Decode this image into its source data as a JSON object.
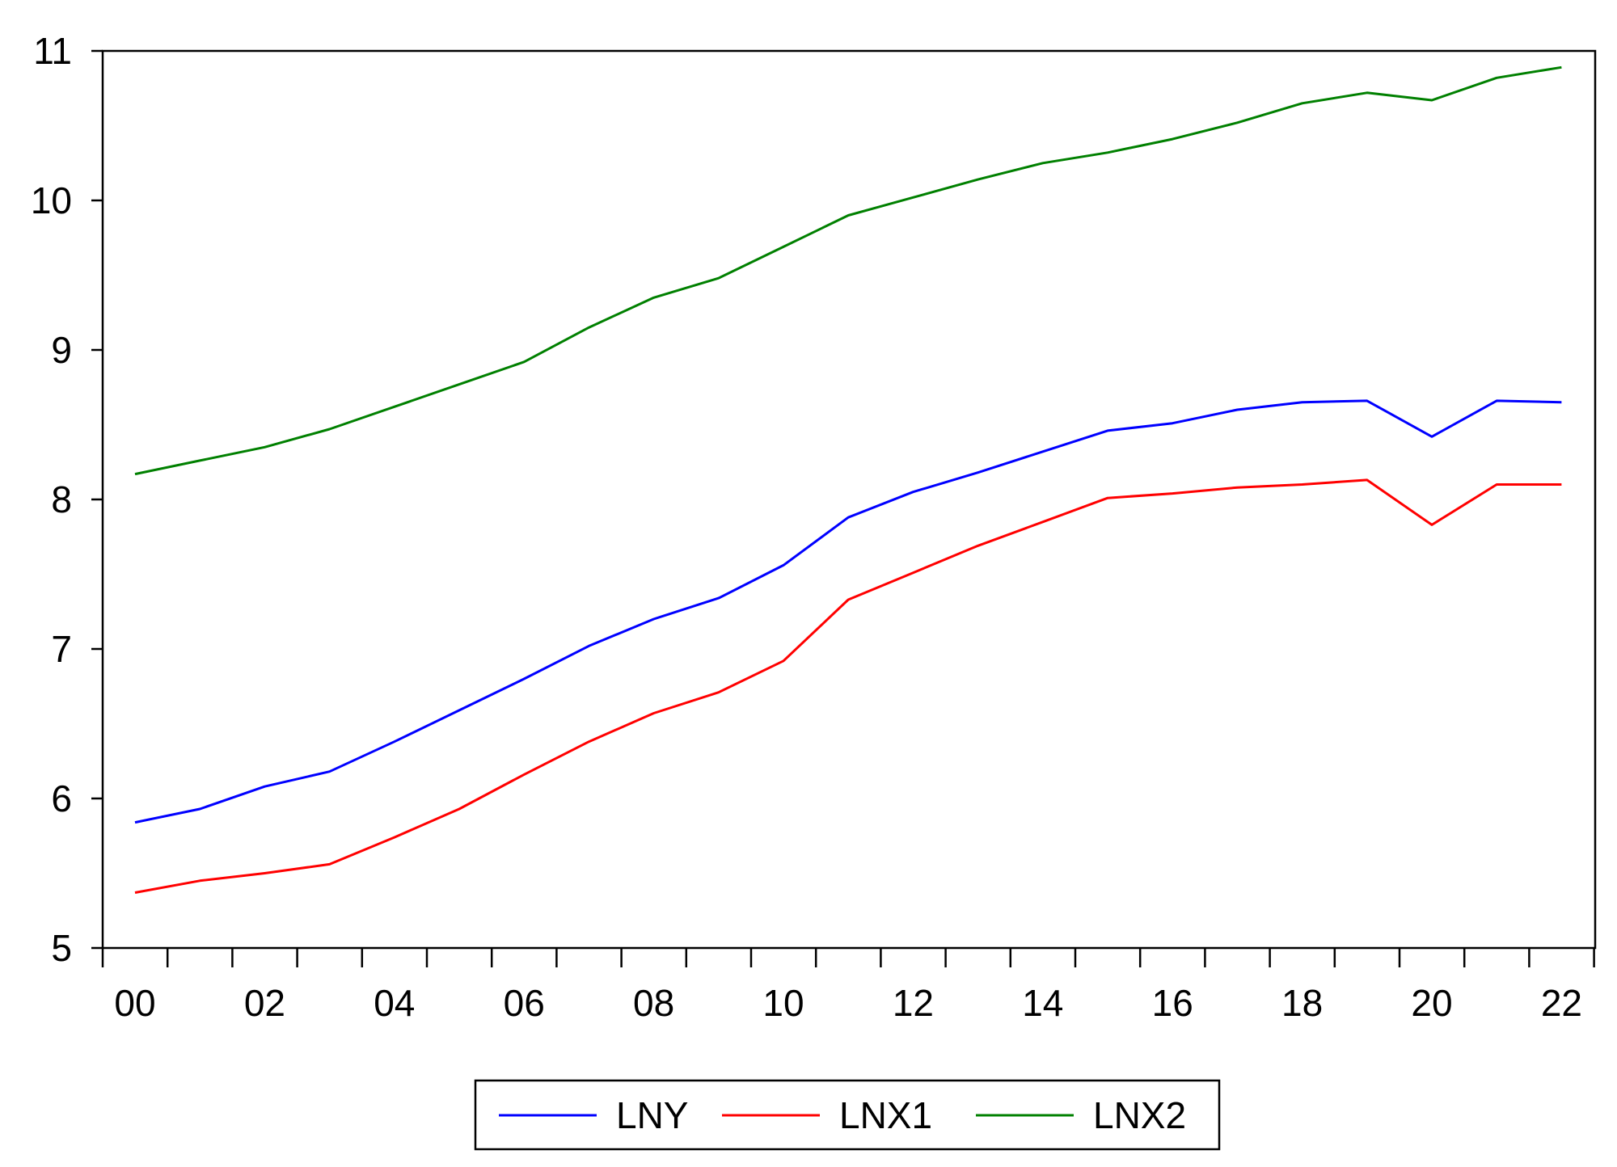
{
  "chart_data": {
    "type": "line",
    "title": "",
    "xlabel": "",
    "ylabel": "",
    "x": [
      "00",
      "01",
      "02",
      "03",
      "04",
      "05",
      "06",
      "07",
      "08",
      "09",
      "10",
      "11",
      "12",
      "13",
      "14",
      "15",
      "16",
      "17",
      "18",
      "19",
      "20",
      "21",
      "22"
    ],
    "x_tick_labels": [
      "00",
      "02",
      "04",
      "06",
      "08",
      "10",
      "12",
      "14",
      "16",
      "18",
      "20",
      "22"
    ],
    "y_tick_labels": [
      "5",
      "6",
      "7",
      "8",
      "9",
      "10",
      "11"
    ],
    "ylim": [
      5,
      11
    ],
    "grid": false,
    "legend_position": "bottom-center",
    "series": [
      {
        "name": "LNY",
        "color": "#0000ff",
        "values": [
          5.84,
          5.93,
          6.08,
          6.18,
          6.38,
          6.59,
          6.8,
          7.02,
          7.2,
          7.34,
          7.56,
          7.88,
          8.05,
          8.18,
          8.32,
          8.46,
          8.51,
          8.6,
          8.65,
          8.66,
          8.42,
          8.66,
          8.65
        ]
      },
      {
        "name": "LNX1",
        "color": "#ff0000",
        "values": [
          5.37,
          5.45,
          5.5,
          5.56,
          5.74,
          5.93,
          6.16,
          6.38,
          6.57,
          6.71,
          6.92,
          7.33,
          7.51,
          7.69,
          7.85,
          8.01,
          8.04,
          8.08,
          8.1,
          8.13,
          7.83,
          8.1,
          8.1
        ]
      },
      {
        "name": "LNX2",
        "color": "#008000",
        "values": [
          8.17,
          8.26,
          8.35,
          8.47,
          8.62,
          8.77,
          8.92,
          9.15,
          9.35,
          9.48,
          9.69,
          9.9,
          10.02,
          10.14,
          10.25,
          10.32,
          10.41,
          10.52,
          10.65,
          10.72,
          10.67,
          10.82,
          10.89
        ]
      }
    ]
  }
}
